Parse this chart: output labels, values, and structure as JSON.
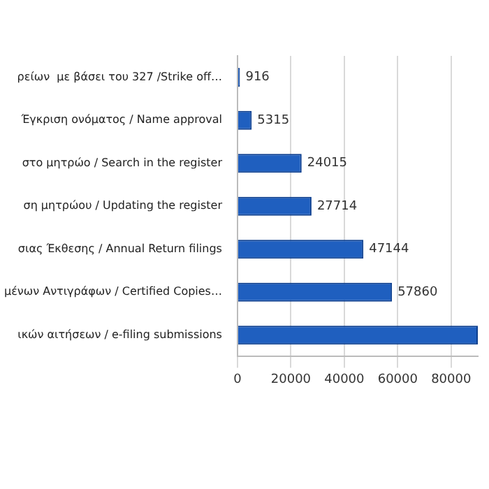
{
  "chart_data": {
    "type": "bar",
    "orientation": "horizontal",
    "categories": [
      "ρείων  με βάσει του 327 /Strike off…",
      "Έγκριση ονόματος / Name approval",
      "στο μητρώο / Search in the register",
      "ση μητρώου / Updating the register",
      "σιας Έκθεσης / Annual Return filings",
      "μένων Αντιγράφων / Certified Copies…",
      "ικών αιτήσεων / e-filing submissions"
    ],
    "values": [
      916,
      5315,
      24015,
      27714,
      47144,
      57860,
      90000
    ],
    "value_labels": [
      "916",
      "5315",
      "24015",
      "27714",
      "47144",
      "57860",
      null
    ],
    "color": "#1f5fbf",
    "xlim": [
      0,
      90000
    ],
    "xticks": [
      0,
      20000,
      40000,
      60000,
      80000
    ],
    "grid": "x"
  }
}
